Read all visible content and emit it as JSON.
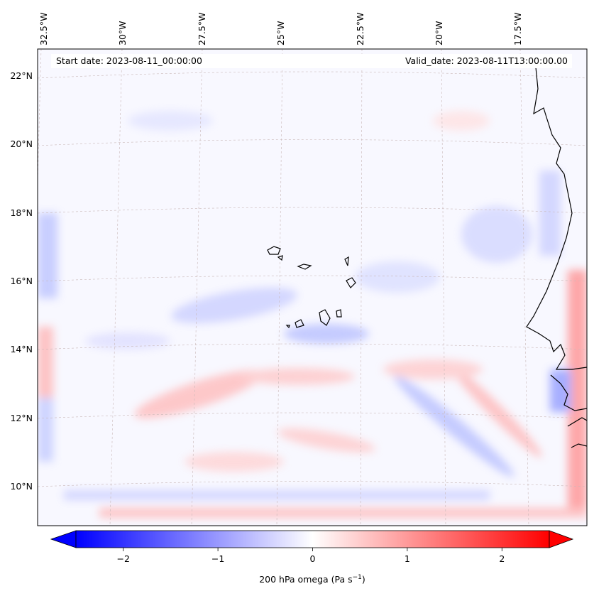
{
  "header": {
    "start_date": "Start date: 2023-08-11_00:00:00",
    "valid_date": "Valid_date: 2023-08-11T13:00:00.00"
  },
  "map": {
    "lon_labels": [
      "32.5°W",
      "30°W",
      "27.5°W",
      "25°W",
      "22.5°W",
      "20°W",
      "17.5°W"
    ],
    "lat_labels": [
      "22°N",
      "20°N",
      "18°N",
      "16°N",
      "14°N",
      "12°N",
      "10°N"
    ],
    "gridlines": true
  },
  "colorbar": {
    "ticks": [
      "−2",
      "−1",
      "0",
      "1",
      "2"
    ],
    "tick_values": [
      -2,
      -1,
      0,
      1,
      2
    ],
    "range": [
      -2.5,
      2.5
    ],
    "label_main": "200 hPa omega (Pa s",
    "label_exp": "−1",
    "label_close": ")",
    "colors": {
      "negative": "#0000ff",
      "zero": "#ffffff",
      "positive": "#ff0000"
    },
    "extend": "both"
  }
}
